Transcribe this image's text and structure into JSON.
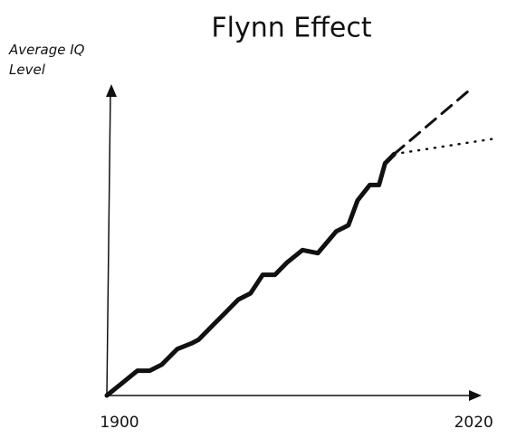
{
  "chart_data": {
    "type": "line",
    "title": "Flynn Effect",
    "y_label": "Average IQ Level",
    "xlim": [
      1900,
      2022
    ],
    "xticks": [
      1900,
      2020
    ],
    "ylim": [
      0,
      100
    ],
    "series": [
      {
        "color": "#111111",
        "dash": "solid",
        "x": [
          1900,
          1905,
          1910,
          1914,
          1918,
          1923,
          1928,
          1930,
          1935,
          1939,
          1943,
          1947,
          1951,
          1955,
          1959,
          1964,
          1969,
          1975,
          1979,
          1982,
          1986,
          1989,
          1991,
          1994
        ],
        "values": [
          0,
          4,
          8,
          8,
          10,
          15,
          17,
          18,
          23,
          27,
          31,
          33,
          39,
          39,
          43,
          47,
          46,
          53,
          55,
          63,
          68,
          68,
          75,
          78
        ]
      },
      {
        "color": "#111111",
        "dash": "dashed",
        "x": [
          1994,
          2019
        ],
        "values": [
          78,
          99
        ]
      },
      {
        "color": "#111111",
        "dash": "dotted",
        "x": [
          1994,
          2027
        ],
        "values": [
          78,
          83
        ]
      }
    ]
  }
}
